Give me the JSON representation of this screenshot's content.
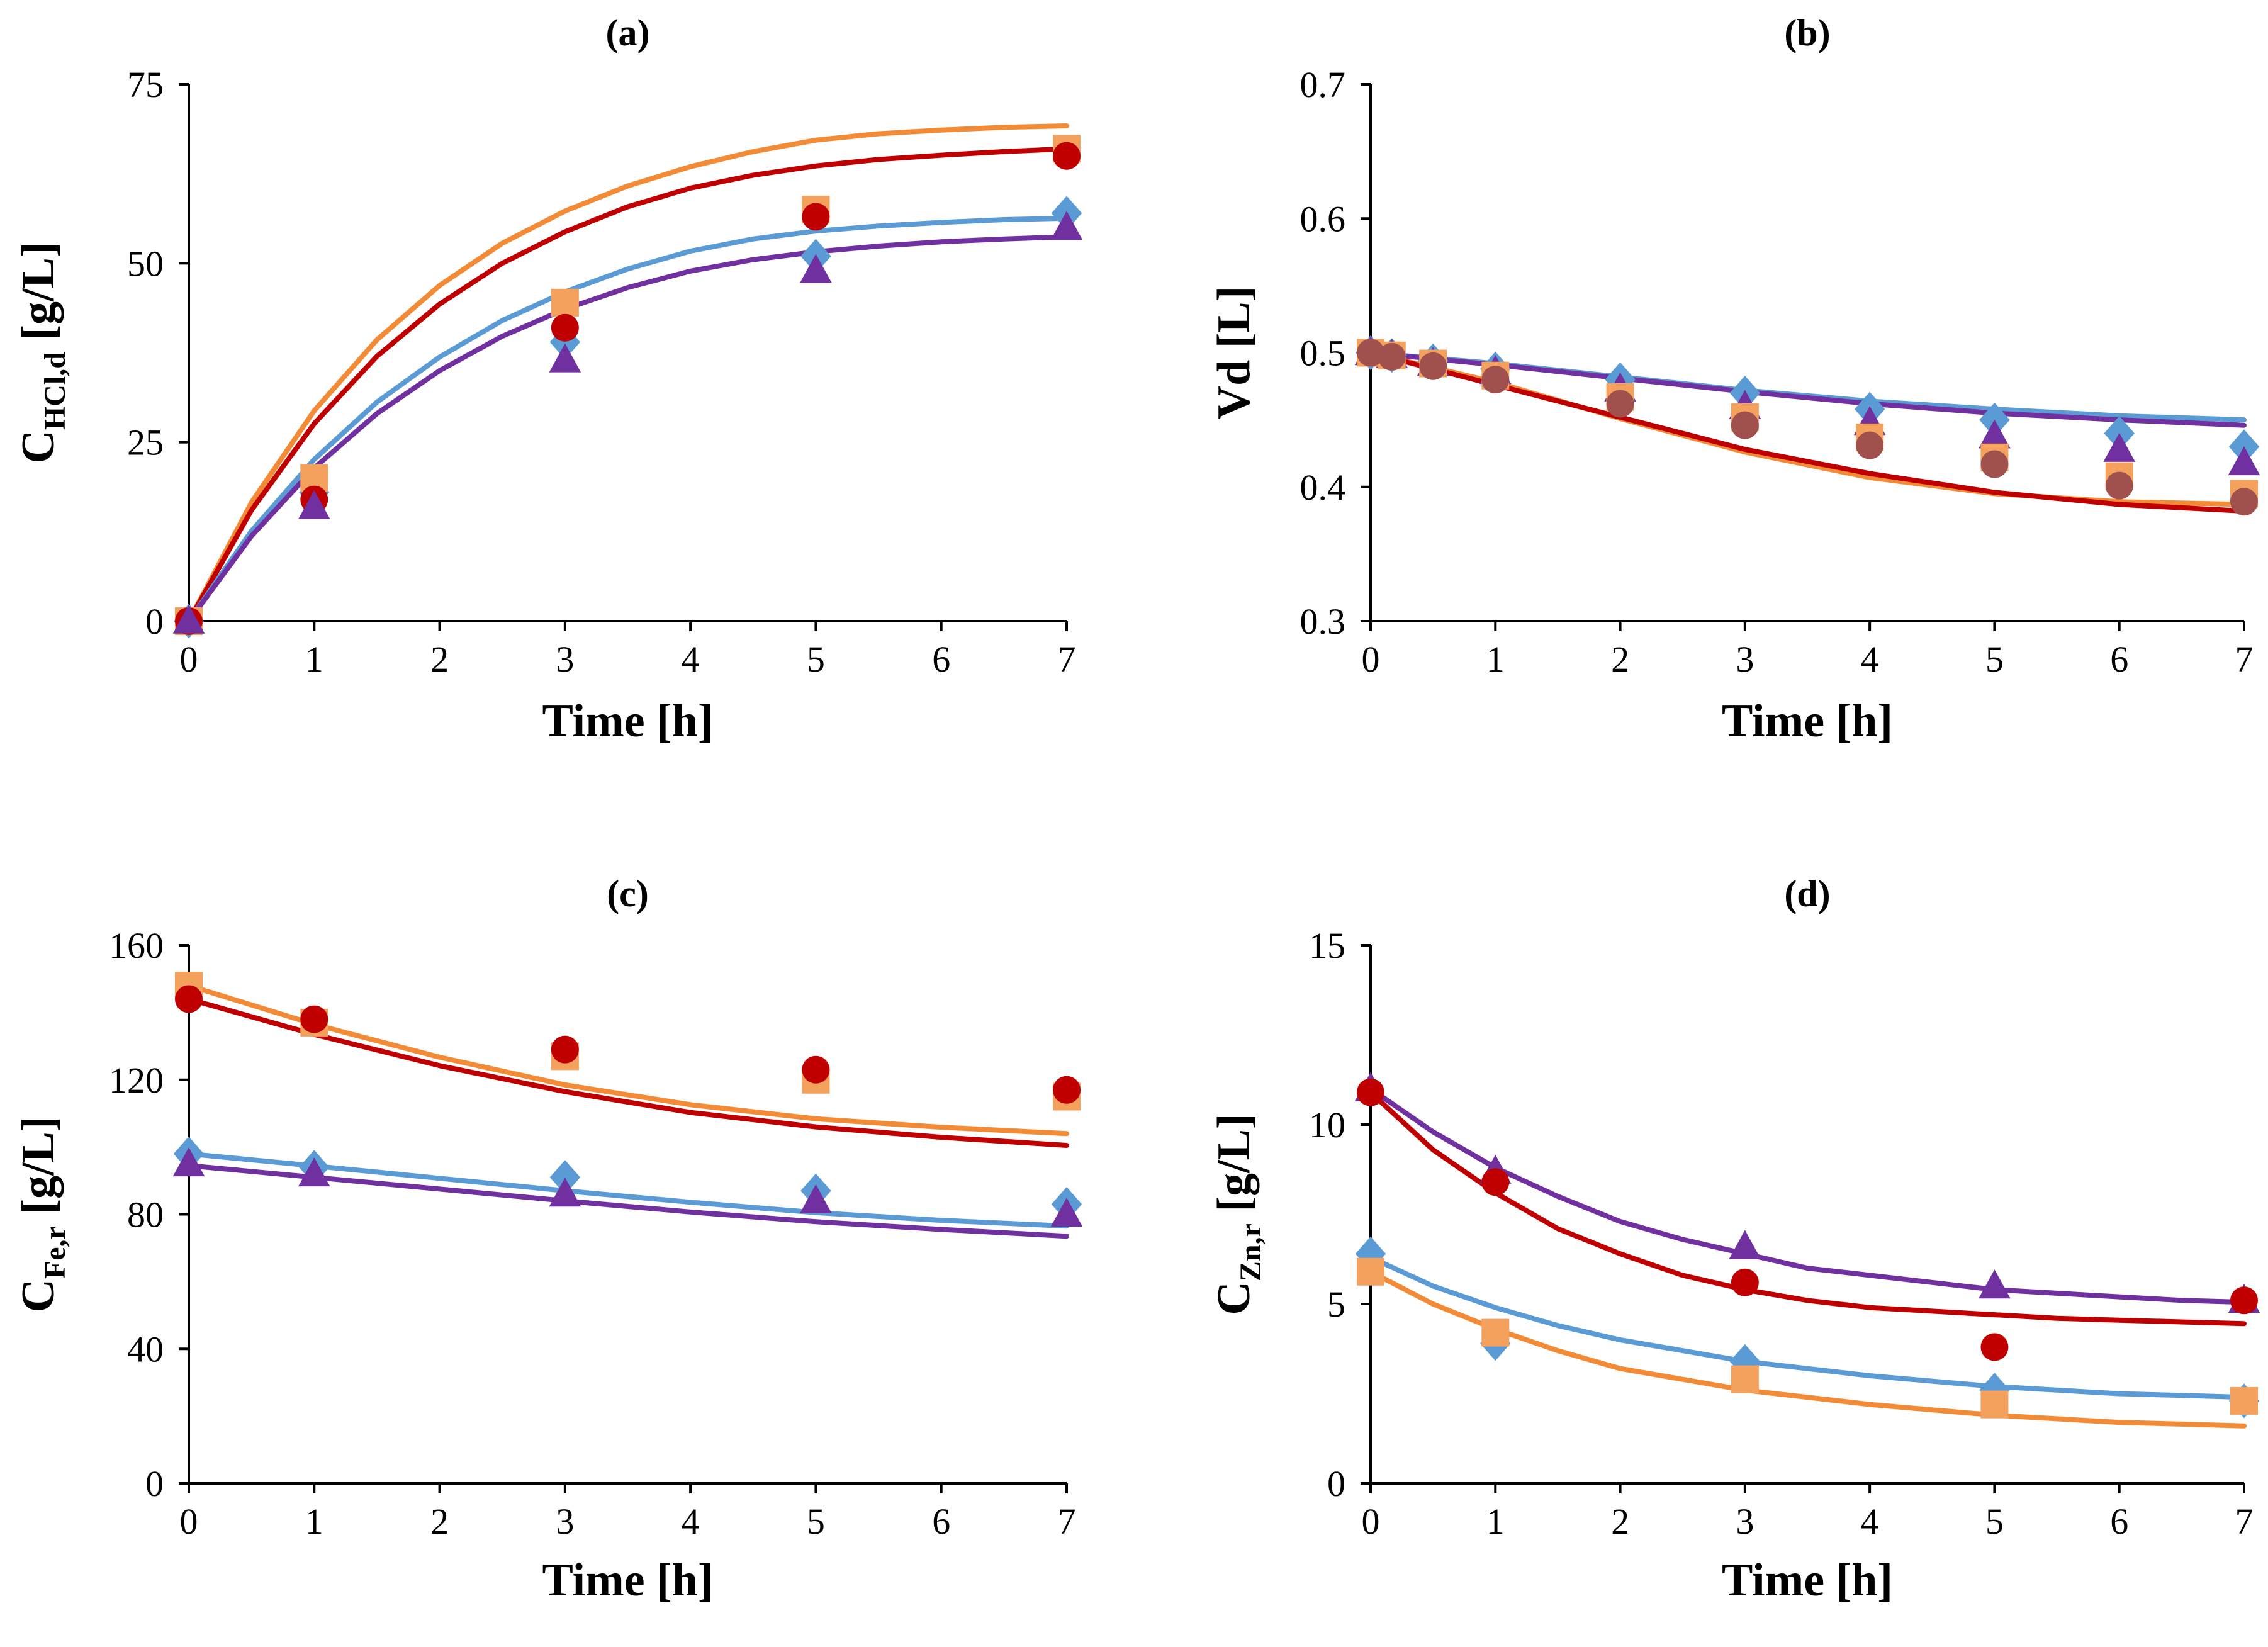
{
  "colors": {
    "blue": "#5B9BD5",
    "orange": "#F4A15E",
    "orangeLine": "#F28A36",
    "red": "#C00000",
    "purple": "#7030A0",
    "brown": "#A0504D"
  },
  "chart_data": [
    {
      "type": "scatter",
      "panel": "a",
      "title": "(a)",
      "xlabel": "Time [h]",
      "ylabel": {
        "main": "C",
        "sub": "HCl,d",
        "unit": "[g/L]"
      },
      "xlim": [
        0,
        7
      ],
      "ylim": [
        0,
        75
      ],
      "xticks": [
        0,
        1,
        2,
        3,
        4,
        5,
        6,
        7
      ],
      "yticks": [
        0,
        25,
        50,
        75
      ],
      "series": [
        {
          "name": "blue-diamond",
          "marker": "diamond",
          "color": "#5B9BD5",
          "x": [
            0,
            1,
            3,
            5,
            7
          ],
          "y": [
            0,
            18,
            39,
            51,
            57
          ]
        },
        {
          "name": "orange-square",
          "marker": "square",
          "color": "#F4A15E",
          "x": [
            0,
            1,
            3,
            5,
            7
          ],
          "y": [
            0,
            20,
            44.5,
            57.5,
            66
          ]
        },
        {
          "name": "red-circle",
          "marker": "circle",
          "color": "#C00000",
          "x": [
            0,
            1,
            3,
            5,
            7
          ],
          "y": [
            0,
            17,
            41,
            56.5,
            65
          ]
        },
        {
          "name": "purple-triangle",
          "marker": "triangle",
          "color": "#7030A0",
          "x": [
            0,
            1,
            3,
            5,
            7
          ],
          "y": [
            0,
            16,
            36.5,
            49,
            55
          ]
        }
      ],
      "fits": [
        {
          "name": "orange-fit",
          "color": "#F28A36",
          "x": [
            0,
            0.5,
            1,
            1.5,
            2,
            2.5,
            3,
            3.5,
            4,
            4.5,
            5,
            5.5,
            6,
            6.5,
            7
          ],
          "y": [
            0,
            16.6,
            29.4,
            39.3,
            46.9,
            52.8,
            57.3,
            60.8,
            63.5,
            65.6,
            67.2,
            68.1,
            68.6,
            69.0,
            69.2
          ]
        },
        {
          "name": "red-fit",
          "color": "#C00000",
          "x": [
            0,
            0.5,
            1,
            1.5,
            2,
            2.5,
            3,
            3.5,
            4,
            4.5,
            5,
            5.5,
            6,
            6.5,
            7
          ],
          "y": [
            0,
            15.5,
            27.6,
            37.0,
            44.3,
            50.0,
            54.4,
            57.9,
            60.5,
            62.3,
            63.6,
            64.5,
            65.1,
            65.6,
            66.0
          ]
        },
        {
          "name": "blue-fit",
          "color": "#5B9BD5",
          "x": [
            0,
            0.5,
            1,
            1.5,
            2,
            2.5,
            3,
            3.5,
            4,
            4.5,
            5,
            5.5,
            6,
            6.5,
            7
          ],
          "y": [
            0,
            12.6,
            22.6,
            30.6,
            36.9,
            42.0,
            46.0,
            49.2,
            51.7,
            53.4,
            54.5,
            55.2,
            55.7,
            56.1,
            56.3
          ]
        },
        {
          "name": "purple-fit",
          "color": "#7030A0",
          "x": [
            0,
            0.5,
            1,
            1.5,
            2,
            2.5,
            3,
            3.5,
            4,
            4.5,
            5,
            5.5,
            6,
            6.5,
            7
          ],
          "y": [
            0,
            11.9,
            21.4,
            29.0,
            35.0,
            39.8,
            43.6,
            46.6,
            48.9,
            50.5,
            51.6,
            52.4,
            53.0,
            53.4,
            53.7
          ]
        }
      ]
    },
    {
      "type": "scatter",
      "panel": "b",
      "title": "(b)",
      "xlabel": "Time [h]",
      "ylabel": {
        "main": "Vd [L]",
        "sub": "",
        "unit": ""
      },
      "xlim": [
        0,
        7
      ],
      "ylim": [
        0.3,
        0.7
      ],
      "xticks": [
        0,
        1,
        2,
        3,
        4,
        5,
        6,
        7
      ],
      "yticks": [
        0.3,
        0.4,
        0.5,
        0.6,
        0.7
      ],
      "series": [
        {
          "name": "blue-diamond",
          "marker": "diamond",
          "color": "#5B9BD5",
          "x": [
            0,
            0.17,
            0.5,
            1,
            2,
            3,
            4,
            5,
            6,
            7
          ],
          "y": [
            0.5,
            0.498,
            0.494,
            0.488,
            0.48,
            0.47,
            0.458,
            0.45,
            0.44,
            0.43
          ]
        },
        {
          "name": "purple-triangle",
          "marker": "triangle",
          "color": "#7030A0",
          "x": [
            0,
            0.17,
            0.5,
            1,
            2,
            3,
            4,
            5,
            6,
            7
          ],
          "y": [
            0.5,
            0.498,
            0.492,
            0.486,
            0.473,
            0.46,
            0.448,
            0.438,
            0.428,
            0.418
          ]
        },
        {
          "name": "orange-square",
          "marker": "square",
          "color": "#F4A15E",
          "x": [
            0,
            0.17,
            0.5,
            1,
            2,
            3,
            4,
            5,
            6,
            7
          ],
          "y": [
            0.5,
            0.498,
            0.492,
            0.483,
            0.467,
            0.452,
            0.437,
            0.422,
            0.408,
            0.395
          ]
        },
        {
          "name": "brown-circle",
          "marker": "circle",
          "color": "#A0504D",
          "x": [
            0,
            0.17,
            0.5,
            1,
            2,
            3,
            4,
            5,
            6,
            7
          ],
          "y": [
            0.5,
            0.497,
            0.49,
            0.48,
            0.462,
            0.446,
            0.431,
            0.417,
            0.401,
            0.389
          ]
        }
      ],
      "fits": [
        {
          "name": "blue-fit",
          "color": "#5B9BD5",
          "x": [
            0,
            1,
            2,
            3,
            4,
            5,
            6,
            7
          ],
          "y": [
            0.5,
            0.492,
            0.482,
            0.472,
            0.464,
            0.458,
            0.453,
            0.45
          ]
        },
        {
          "name": "purple-fit",
          "color": "#7030A0",
          "x": [
            0,
            1,
            2,
            3,
            4,
            5,
            6,
            7
          ],
          "y": [
            0.5,
            0.491,
            0.481,
            0.471,
            0.462,
            0.455,
            0.45,
            0.446
          ]
        },
        {
          "name": "orange-fit",
          "color": "#F28A36",
          "x": [
            0,
            1,
            2,
            3,
            4,
            5,
            6,
            7
          ],
          "y": [
            0.5,
            0.478,
            0.451,
            0.426,
            0.407,
            0.395,
            0.389,
            0.387
          ]
        },
        {
          "name": "red-fit",
          "color": "#C00000",
          "x": [
            0,
            1,
            2,
            3,
            4,
            5,
            6,
            7
          ],
          "y": [
            0.5,
            0.476,
            0.452,
            0.428,
            0.41,
            0.396,
            0.387,
            0.382
          ]
        }
      ]
    },
    {
      "type": "scatter",
      "panel": "c",
      "title": "(c)",
      "xlabel": "Time [h]",
      "ylabel": {
        "main": "C",
        "sub": "Fe,r",
        "unit": "[g/L]"
      },
      "xlim": [
        0,
        7
      ],
      "ylim": [
        0,
        160
      ],
      "xticks": [
        0,
        1,
        2,
        3,
        4,
        5,
        6,
        7
      ],
      "yticks": [
        0,
        40,
        80,
        120,
        160
      ],
      "series": [
        {
          "name": "orange-square",
          "marker": "square",
          "color": "#F4A15E",
          "x": [
            0,
            1,
            3,
            5,
            7
          ],
          "y": [
            148,
            137,
            127,
            120,
            115
          ]
        },
        {
          "name": "red-circle",
          "marker": "circle",
          "color": "#C00000",
          "x": [
            0,
            1,
            3,
            5,
            7
          ],
          "y": [
            144,
            138,
            129,
            123,
            117
          ]
        },
        {
          "name": "blue-diamond",
          "marker": "diamond",
          "color": "#5B9BD5",
          "x": [
            0,
            1,
            3,
            5,
            7
          ],
          "y": [
            98,
            94,
            91,
            87,
            83
          ]
        },
        {
          "name": "purple-triangle",
          "marker": "triangle",
          "color": "#7030A0",
          "x": [
            0,
            1,
            3,
            5,
            7
          ],
          "y": [
            95,
            92,
            86,
            84,
            80
          ]
        }
      ],
      "fits": [
        {
          "name": "orange-fit",
          "color": "#F28A36",
          "x": [
            0,
            1,
            2,
            3,
            4,
            5,
            6,
            7
          ],
          "y": [
            148,
            136.5,
            126.7,
            118.5,
            112.6,
            108.4,
            105.9,
            104
          ]
        },
        {
          "name": "red-fit",
          "color": "#C00000",
          "x": [
            0,
            1,
            2,
            3,
            4,
            5,
            6,
            7
          ],
          "y": [
            144,
            133.5,
            124.2,
            116.5,
            110.3,
            106,
            102.9,
            100.5
          ]
        },
        {
          "name": "blue-fit",
          "color": "#5B9BD5",
          "x": [
            0,
            1,
            2,
            3,
            4,
            5,
            6,
            7
          ],
          "y": [
            98,
            94.4,
            90.7,
            87,
            83.6,
            80.5,
            78.2,
            76.5
          ]
        },
        {
          "name": "purple-fit",
          "color": "#7030A0",
          "x": [
            0,
            1,
            2,
            3,
            4,
            5,
            6,
            7
          ],
          "y": [
            94.5,
            91,
            87.5,
            84,
            80.7,
            77.8,
            75.5,
            73.5
          ]
        }
      ]
    },
    {
      "type": "scatter",
      "panel": "d",
      "title": "(d)",
      "xlabel": "Time [h]",
      "ylabel": {
        "main": "C",
        "sub": "Zn,r",
        "unit": "[g/L]"
      },
      "xlim": [
        0,
        7
      ],
      "ylim": [
        0,
        15
      ],
      "xticks": [
        0,
        1,
        2,
        3,
        4,
        5,
        6,
        7
      ],
      "yticks": [
        0,
        5,
        10,
        15
      ],
      "series": [
        {
          "name": "purple-triangle",
          "marker": "triangle",
          "color": "#7030A0",
          "x": [
            0,
            1,
            3,
            5,
            7
          ],
          "y": [
            11,
            8.7,
            6.6,
            5.5,
            5.1
          ]
        },
        {
          "name": "red-circle",
          "marker": "circle",
          "color": "#C00000",
          "x": [
            0,
            1,
            3,
            5,
            7
          ],
          "y": [
            10.9,
            8.4,
            5.6,
            3.8,
            5.1
          ]
        },
        {
          "name": "blue-diamond",
          "marker": "diamond",
          "color": "#5B9BD5",
          "x": [
            0,
            1,
            3,
            5,
            7
          ],
          "y": [
            6.4,
            3.9,
            3.4,
            2.6,
            2.3
          ]
        },
        {
          "name": "orange-square",
          "marker": "square",
          "color": "#F4A15E",
          "x": [
            0,
            1,
            3,
            5,
            7
          ],
          "y": [
            5.9,
            4.2,
            2.9,
            2.2,
            2.3
          ]
        }
      ],
      "fits": [
        {
          "name": "purple-fit",
          "color": "#7030A0",
          "x": [
            0,
            0.5,
            1,
            1.5,
            2,
            2.5,
            3,
            3.5,
            4,
            4.5,
            5,
            5.5,
            6,
            6.5,
            7
          ],
          "y": [
            11,
            9.8,
            8.8,
            8.0,
            7.3,
            6.8,
            6.4,
            6.0,
            5.8,
            5.6,
            5.4,
            5.3,
            5.2,
            5.1,
            5.05
          ]
        },
        {
          "name": "red-fit",
          "color": "#C00000",
          "x": [
            0,
            0.5,
            1,
            1.5,
            2,
            2.5,
            3,
            3.5,
            4,
            4.5,
            5,
            5.5,
            6,
            6.5,
            7
          ],
          "y": [
            10.9,
            9.3,
            8.1,
            7.1,
            6.4,
            5.8,
            5.4,
            5.1,
            4.9,
            4.8,
            4.7,
            4.6,
            4.55,
            4.5,
            4.45
          ]
        },
        {
          "name": "blue-fit",
          "color": "#5B9BD5",
          "x": [
            0,
            0.5,
            1,
            1.5,
            2,
            2.5,
            3,
            3.5,
            4,
            4.5,
            5,
            5.5,
            6,
            6.5,
            7
          ],
          "y": [
            6.3,
            5.5,
            4.9,
            4.4,
            4.0,
            3.7,
            3.4,
            3.2,
            3.0,
            2.85,
            2.7,
            2.6,
            2.5,
            2.45,
            2.4
          ]
        },
        {
          "name": "orange-fit",
          "color": "#F28A36",
          "x": [
            0,
            0.5,
            1,
            1.5,
            2,
            2.5,
            3,
            3.5,
            4,
            4.5,
            5,
            5.5,
            6,
            6.5,
            7
          ],
          "y": [
            5.9,
            5.0,
            4.3,
            3.7,
            3.2,
            2.9,
            2.6,
            2.4,
            2.2,
            2.05,
            1.9,
            1.8,
            1.7,
            1.65,
            1.6
          ]
        }
      ]
    }
  ]
}
